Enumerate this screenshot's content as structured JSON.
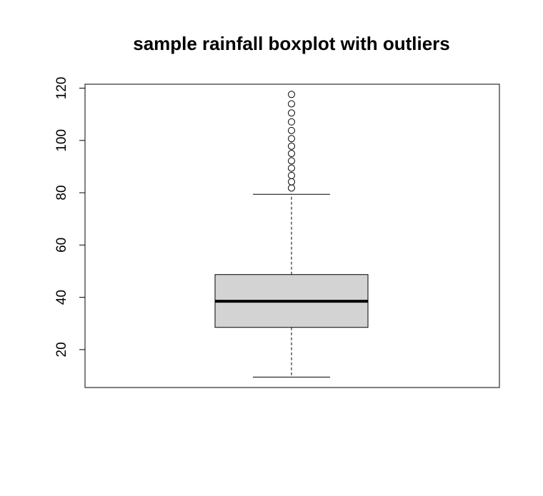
{
  "chart_data": {
    "type": "boxplot",
    "title": "sample rainfall boxplot with outliers",
    "xlabel": "",
    "ylabel": "",
    "ylim": [
      5.5,
      121.5
    ],
    "yticks": [
      20,
      40,
      60,
      80,
      100,
      120
    ],
    "ytick_labels": [
      "20",
      "40",
      "60",
      "80",
      "100",
      "120"
    ],
    "box": {
      "whisker_low": 9.5,
      "q1": 28.5,
      "median": 38.5,
      "q3": 48.7,
      "whisker_high": 79.4
    },
    "outliers": [
      81.8,
      84.2,
      86.6,
      89.4,
      92.2,
      95.0,
      97.8,
      100.7,
      103.8,
      107.1,
      110.5,
      114.0,
      117.6
    ],
    "colors": {
      "box_fill": "#d3d3d3",
      "stroke": "#000000",
      "background": "#ffffff"
    },
    "grid": false,
    "legend": "none"
  }
}
